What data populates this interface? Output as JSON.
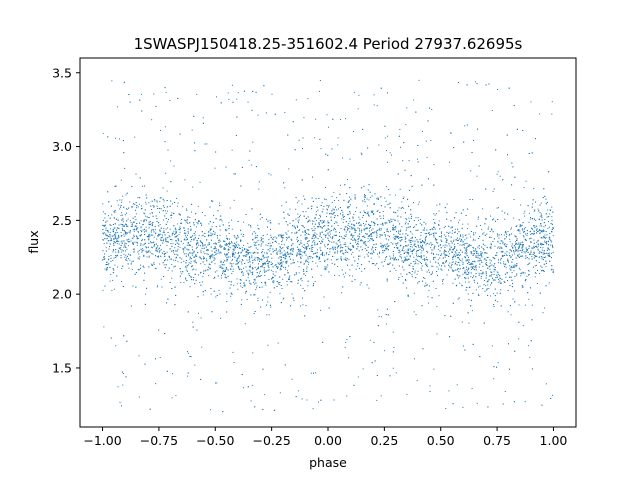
{
  "chart_data": {
    "type": "scatter",
    "title": "1SWASPJ150418.25-351602.4 Period 27937.62695s",
    "xlabel": "phase",
    "ylabel": "flux",
    "xlim": [
      -1.1,
      1.1
    ],
    "ylim": [
      1.1,
      3.6
    ],
    "xticks": [
      -1.0,
      -0.75,
      -0.5,
      -0.25,
      0.0,
      0.25,
      0.5,
      0.75,
      1.0
    ],
    "xtick_labels": [
      "−1.00",
      "−0.75",
      "−0.50",
      "−0.25",
      "0.00",
      "0.25",
      "0.50",
      "0.75",
      "1.00"
    ],
    "yticks": [
      1.5,
      2.0,
      2.5,
      3.0,
      3.5
    ],
    "ytick_labels": [
      "1.5",
      "2.0",
      "2.5",
      "3.0",
      "3.5"
    ],
    "grid": false,
    "point_color": "#1f77b4",
    "x_range": [
      -1.0,
      1.0
    ],
    "y_range": [
      1.2,
      3.45
    ],
    "trend": {
      "description_phase_points": [
        -1.0,
        -0.8,
        -0.55,
        -0.3,
        0.0,
        0.2,
        0.45,
        0.7,
        1.0
      ],
      "flux_mean": [
        2.35,
        2.42,
        2.3,
        2.22,
        2.38,
        2.42,
        2.3,
        2.22,
        2.38
      ]
    }
  }
}
